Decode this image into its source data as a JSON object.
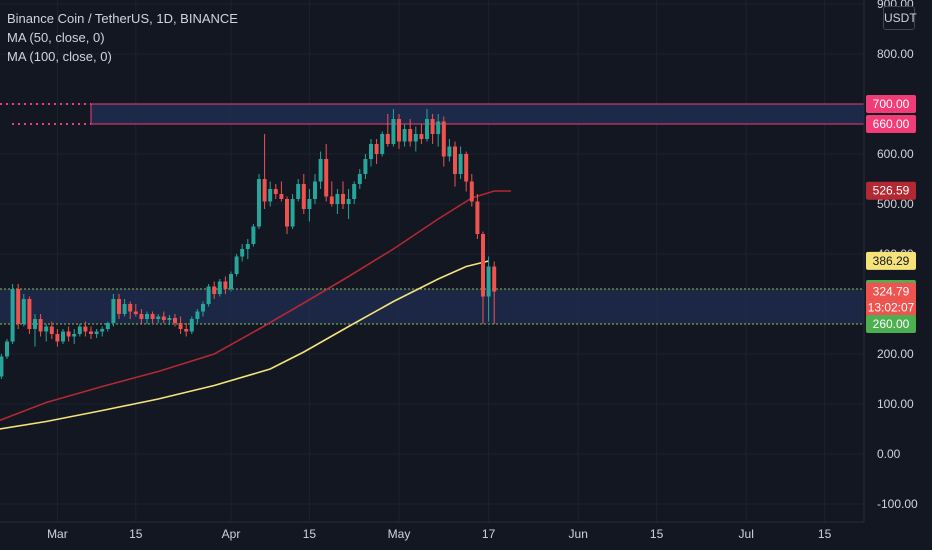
{
  "header": {
    "title": "Binance Coin / TetherUS, 1D, BINANCE",
    "indicators": [
      "MA (50, close, 0)",
      "MA (100, close, 0)"
    ],
    "currency": "USDT"
  },
  "colors": {
    "background": "#131722",
    "grid": "#1e222d",
    "text": "#d1d4dc",
    "up": "#26a69a",
    "down": "#ef5350",
    "ma50": "#f5e37a",
    "ma100": "#b22833",
    "resistance": "#f23c78",
    "support": "#8bc34a",
    "zone_fill": "#1f2d50"
  },
  "price_badges": [
    {
      "value": "700.00",
      "color": "#f23c78",
      "text_color": "#ffffff"
    },
    {
      "value": "660.00",
      "color": "#f23c78",
      "text_color": "#ffffff"
    },
    {
      "value": "526.59",
      "color": "#b22833",
      "text_color": "#ffffff"
    },
    {
      "value": "386.29",
      "color": "#f5e37a",
      "text_color": "#131722"
    },
    {
      "value": "330.00",
      "color": "#4caf50",
      "text_color": "#ffffff"
    },
    {
      "value": "324.79",
      "color": "#ef5350",
      "text_color": "#ffffff",
      "sub": "13:02:07"
    },
    {
      "value": "260.00",
      "color": "#4caf50",
      "text_color": "#ffffff"
    }
  ],
  "chart_data": {
    "type": "candlestick",
    "title": "Binance Coin / TetherUS, 1D, BINANCE",
    "y_axis": {
      "range": [
        -120,
        900
      ],
      "ticks": [
        "900.00",
        "800.00",
        "700.00",
        "600.00",
        "500.00",
        "400.00",
        "300.00",
        "200.00",
        "100.00",
        "0.00",
        "-100.00"
      ],
      "tick_values": [
        900,
        800,
        700,
        600,
        500,
        400,
        300,
        200,
        100,
        0,
        -100
      ]
    },
    "x_axis": {
      "labels": [
        "Mar",
        "15",
        "Apr",
        "15",
        "May",
        "17",
        "Jun",
        "15",
        "Jul",
        "15"
      ],
      "label_day_index": [
        8,
        22,
        39,
        53,
        69,
        85,
        101,
        115,
        131,
        145
      ],
      "day_range": [
        -4,
        159
      ]
    },
    "zones": [
      {
        "name": "resistance",
        "from": 660,
        "to": 700,
        "start_day": 14
      },
      {
        "name": "support",
        "from": 260,
        "to": 330,
        "start_day": -4
      }
    ],
    "ma50": [
      [
        -4,
        47
      ],
      [
        6,
        65
      ],
      [
        16,
        87
      ],
      [
        26,
        110
      ],
      [
        36,
        137
      ],
      [
        46,
        170
      ],
      [
        52,
        204
      ],
      [
        60,
        255
      ],
      [
        68,
        305
      ],
      [
        76,
        350
      ],
      [
        81,
        375
      ],
      [
        85,
        386
      ]
    ],
    "ma100": [
      [
        -4,
        60
      ],
      [
        6,
        103
      ],
      [
        16,
        135
      ],
      [
        26,
        165
      ],
      [
        36,
        200
      ],
      [
        44,
        250
      ],
      [
        52,
        302
      ],
      [
        60,
        355
      ],
      [
        68,
        410
      ],
      [
        76,
        470
      ],
      [
        82,
        512
      ],
      [
        86,
        526
      ],
      [
        89,
        526
      ]
    ],
    "candles": [
      [
        -3,
        140,
        160,
        125,
        155
      ],
      [
        -2,
        155,
        200,
        150,
        195
      ],
      [
        -1,
        195,
        230,
        190,
        225
      ],
      [
        0,
        225,
        340,
        220,
        330
      ],
      [
        1,
        330,
        340,
        250,
        260
      ],
      [
        2,
        260,
        320,
        255,
        310
      ],
      [
        3,
        310,
        315,
        240,
        250
      ],
      [
        4,
        250,
        280,
        215,
        270
      ],
      [
        5,
        270,
        280,
        235,
        245
      ],
      [
        6,
        245,
        260,
        225,
        255
      ],
      [
        7,
        255,
        265,
        230,
        240
      ],
      [
        8,
        240,
        250,
        215,
        225
      ],
      [
        9,
        225,
        250,
        220,
        245
      ],
      [
        10,
        245,
        255,
        225,
        235
      ],
      [
        11,
        235,
        250,
        220,
        240
      ],
      [
        12,
        240,
        260,
        235,
        255
      ],
      [
        13,
        255,
        265,
        235,
        245
      ],
      [
        14,
        245,
        255,
        230,
        240
      ],
      [
        15,
        240,
        250,
        232,
        245
      ],
      [
        16,
        245,
        255,
        235,
        250
      ],
      [
        17,
        250,
        265,
        245,
        262
      ],
      [
        18,
        262,
        320,
        255,
        310
      ],
      [
        19,
        310,
        320,
        270,
        280
      ],
      [
        20,
        280,
        310,
        275,
        300
      ],
      [
        21,
        300,
        305,
        270,
        285
      ],
      [
        22,
        285,
        300,
        275,
        280
      ],
      [
        23,
        280,
        290,
        260,
        270
      ],
      [
        24,
        270,
        285,
        260,
        280
      ],
      [
        25,
        280,
        285,
        262,
        270
      ],
      [
        26,
        270,
        280,
        262,
        275
      ],
      [
        27,
        275,
        285,
        262,
        268
      ],
      [
        28,
        268,
        278,
        258,
        272
      ],
      [
        29,
        272,
        280,
        255,
        262
      ],
      [
        30,
        262,
        275,
        240,
        250
      ],
      [
        31,
        250,
        262,
        235,
        245
      ],
      [
        32,
        245,
        275,
        240,
        270
      ],
      [
        33,
        270,
        290,
        262,
        285
      ],
      [
        34,
        285,
        305,
        275,
        300
      ],
      [
        35,
        300,
        340,
        295,
        335
      ],
      [
        36,
        335,
        345,
        310,
        320
      ],
      [
        37,
        320,
        350,
        315,
        345
      ],
      [
        38,
        345,
        355,
        320,
        330
      ],
      [
        39,
        330,
        365,
        325,
        360
      ],
      [
        40,
        360,
        400,
        355,
        395
      ],
      [
        41,
        395,
        420,
        385,
        410
      ],
      [
        42,
        410,
        430,
        390,
        420
      ],
      [
        43,
        420,
        460,
        415,
        455
      ],
      [
        44,
        455,
        560,
        450,
        550
      ],
      [
        45,
        550,
        640,
        490,
        505
      ],
      [
        46,
        505,
        545,
        495,
        530
      ],
      [
        47,
        530,
        540,
        510,
        520
      ],
      [
        48,
        520,
        545,
        505,
        510
      ],
      [
        49,
        510,
        515,
        440,
        455
      ],
      [
        50,
        455,
        520,
        450,
        510
      ],
      [
        51,
        510,
        550,
        505,
        540
      ],
      [
        52,
        540,
        560,
        480,
        490
      ],
      [
        53,
        490,
        530,
        465,
        510
      ],
      [
        54,
        510,
        560,
        500,
        545
      ],
      [
        55,
        545,
        605,
        530,
        590
      ],
      [
        56,
        590,
        620,
        505,
        515
      ],
      [
        57,
        515,
        545,
        495,
        500
      ],
      [
        58,
        500,
        530,
        480,
        520
      ],
      [
        59,
        520,
        545,
        490,
        500
      ],
      [
        60,
        500,
        530,
        470,
        510
      ],
      [
        61,
        510,
        545,
        500,
        540
      ],
      [
        62,
        540,
        570,
        530,
        560
      ],
      [
        63,
        560,
        600,
        550,
        590
      ],
      [
        64,
        590,
        630,
        575,
        620
      ],
      [
        65,
        620,
        630,
        580,
        600
      ],
      [
        66,
        600,
        645,
        595,
        640
      ],
      [
        67,
        640,
        680,
        615,
        620
      ],
      [
        68,
        620,
        690,
        615,
        670
      ],
      [
        69,
        670,
        680,
        610,
        625
      ],
      [
        70,
        625,
        660,
        615,
        650
      ],
      [
        71,
        650,
        670,
        615,
        625
      ],
      [
        72,
        625,
        655,
        605,
        640
      ],
      [
        73,
        640,
        660,
        620,
        630
      ],
      [
        74,
        630,
        690,
        625,
        670
      ],
      [
        75,
        670,
        680,
        620,
        640
      ],
      [
        76,
        640,
        680,
        615,
        665
      ],
      [
        77,
        665,
        675,
        575,
        595
      ],
      [
        78,
        595,
        630,
        585,
        615
      ],
      [
        79,
        615,
        625,
        535,
        560
      ],
      [
        80,
        560,
        615,
        550,
        600
      ],
      [
        81,
        600,
        605,
        525,
        545
      ],
      [
        82,
        545,
        560,
        495,
        505
      ],
      [
        83,
        505,
        520,
        430,
        440
      ],
      [
        84,
        440,
        445,
        260,
        315
      ],
      [
        85,
        315,
        395,
        265,
        375
      ],
      [
        86,
        375,
        385,
        260,
        324.79
      ]
    ]
  }
}
